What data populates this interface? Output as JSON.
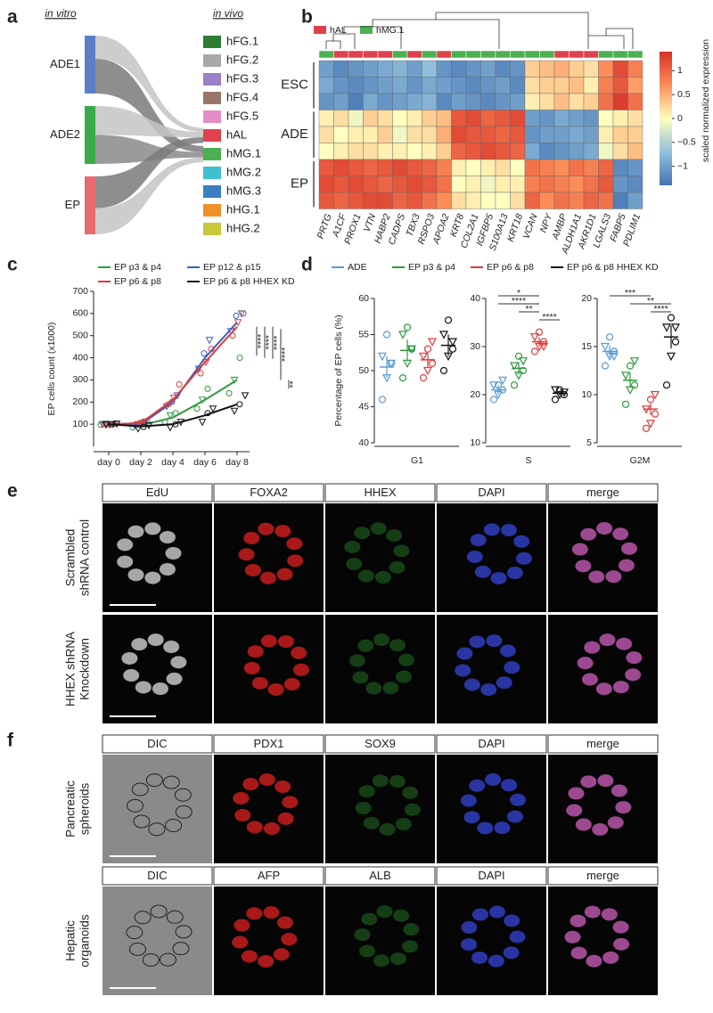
{
  "panel_letters": [
    "a",
    "b",
    "c",
    "d",
    "e",
    "f"
  ],
  "chart_data": [
    {
      "type": "sankey",
      "left_title": "in vitro",
      "right_title": "in vivo",
      "sources": [
        {
          "name": "ADE1",
          "color": "#5b7fc6"
        },
        {
          "name": "ADE2",
          "color": "#3aaa4a"
        },
        {
          "name": "EP",
          "color": "#e8696e"
        }
      ],
      "targets": [
        {
          "name": "hFG.1",
          "color": "#2e7d32"
        },
        {
          "name": "hFG.2",
          "color": "#a8a8a8"
        },
        {
          "name": "hFG.3",
          "color": "#9c7fc8"
        },
        {
          "name": "hFG.4",
          "color": "#9a766a"
        },
        {
          "name": "hFG.5",
          "color": "#e58cc8"
        },
        {
          "name": "hAL",
          "color": "#e0414c"
        },
        {
          "name": "hMG.1",
          "color": "#4caf50"
        },
        {
          "name": "hMG.2",
          "color": "#3fbfcf"
        },
        {
          "name": "hMG.3",
          "color": "#3a7fc0"
        },
        {
          "name": "hHG.1",
          "color": "#f0902a"
        },
        {
          "name": "hHG.2",
          "color": "#c8c83a"
        }
      ],
      "links": [
        {
          "source": 0,
          "target": 5,
          "value": 0.4,
          "color": "#c4c4c4"
        },
        {
          "source": 0,
          "target": 6,
          "value": 0.6,
          "color": "#7a7a7a"
        },
        {
          "source": 1,
          "target": 5,
          "value": 0.5,
          "color": "#c4c4c4"
        },
        {
          "source": 1,
          "target": 6,
          "value": 0.5,
          "color": "#8a8a8a"
        },
        {
          "source": 2,
          "target": 5,
          "value": 0.55,
          "color": "#7a7a7a"
        },
        {
          "source": 2,
          "target": 6,
          "value": 0.45,
          "color": "#c4c4c4"
        }
      ]
    },
    {
      "type": "heatmap",
      "legend": [
        {
          "name": "hAL",
          "color": "#e0414c"
        },
        {
          "name": "hMG.1",
          "color": "#4caf50"
        }
      ],
      "columns": [
        "PRTG",
        "A1CF",
        "PROX1",
        "VTN",
        "HABP2",
        "CADPS",
        "TBX3",
        "RSPO3",
        "APOA2",
        "KRT8",
        "COL2A1",
        "IGFBP5",
        "S100A13",
        "KRT18",
        "VCAN",
        "NPY",
        "AMBP",
        "ALDH1A1",
        "AKR1D1",
        "LGALS3",
        "FABP5",
        "PDLIM1"
      ],
      "column_groups": [
        1,
        0,
        0,
        0,
        0,
        1,
        0,
        1,
        0,
        1,
        1,
        1,
        1,
        1,
        1,
        1,
        0,
        0,
        0,
        1,
        1,
        1
      ],
      "row_groups": [
        {
          "label": "ESC",
          "values": [
            [
              -1.0,
              -1.2,
              -1.1,
              -1.0,
              -0.9,
              -0.8,
              -1.0,
              -0.7,
              -1.1,
              -1.2,
              -1.1,
              -1.0,
              -1.2,
              -1.1,
              0.3,
              0.4,
              0.5,
              0.3,
              0.2,
              0.7,
              1.2,
              0.8
            ],
            [
              -0.9,
              -1.1,
              -1.2,
              -1.1,
              -1.0,
              -0.9,
              -1.1,
              -0.9,
              -1.0,
              -1.1,
              -1.2,
              -1.1,
              -1.0,
              -1.2,
              0.2,
              0.3,
              0.3,
              0.4,
              0.1,
              0.8,
              1.1,
              0.6
            ],
            [
              -1.1,
              -1.0,
              -1.3,
              -0.9,
              -1.1,
              -1.0,
              -0.9,
              -0.8,
              -1.2,
              -1.0,
              -1.1,
              -1.2,
              -1.1,
              -1.0,
              0.1,
              0.2,
              0.4,
              0.2,
              0.3,
              0.9,
              1.3,
              0.9
            ]
          ]
        },
        {
          "label": "ADE",
          "values": [
            [
              0.1,
              0.2,
              -0.1,
              0.3,
              0.2,
              0.0,
              0.1,
              0.3,
              0.4,
              1.1,
              1.2,
              1.0,
              1.1,
              1.2,
              -1.0,
              -1.1,
              -0.9,
              -1.0,
              -1.1,
              0.0,
              0.1,
              0.2
            ],
            [
              0.2,
              0.0,
              0.1,
              0.1,
              0.3,
              -0.1,
              0.2,
              0.2,
              0.5,
              1.2,
              1.1,
              1.1,
              1.0,
              1.1,
              -1.1,
              -1.0,
              -1.0,
              -0.9,
              -1.0,
              0.1,
              0.3,
              0.3
            ],
            [
              0.0,
              0.1,
              0.2,
              0.2,
              0.1,
              0.1,
              0.0,
              0.1,
              0.3,
              1.0,
              1.1,
              1.2,
              1.1,
              1.0,
              -0.9,
              -1.2,
              -1.1,
              -1.0,
              -0.9,
              -0.1,
              0.2,
              0.4
            ]
          ]
        },
        {
          "label": "EP",
          "values": [
            [
              1.1,
              1.2,
              1.1,
              1.0,
              1.1,
              1.2,
              1.1,
              1.0,
              0.8,
              0.1,
              0.0,
              0.1,
              0.2,
              0.0,
              0.9,
              0.8,
              0.7,
              0.9,
              0.8,
              1.0,
              -1.2,
              -1.1
            ],
            [
              1.2,
              1.1,
              1.2,
              1.1,
              1.0,
              1.1,
              1.2,
              1.1,
              0.9,
              0.0,
              0.1,
              -0.1,
              0.1,
              0.1,
              0.8,
              0.9,
              0.8,
              0.7,
              0.9,
              1.1,
              -1.1,
              -1.2
            ],
            [
              1.1,
              1.0,
              1.1,
              1.2,
              1.2,
              1.0,
              1.1,
              0.9,
              0.7,
              0.2,
              0.1,
              0.0,
              0.0,
              0.2,
              1.0,
              0.7,
              0.9,
              0.8,
              1.0,
              0.9,
              -1.3,
              -1.0
            ]
          ]
        }
      ],
      "clim": [
        -1.4,
        1.4
      ],
      "colors": [
        "#4575b4",
        "#91bfdb",
        "#ffffbf",
        "#fc8d59",
        "#d73027"
      ],
      "colorbar_ticks": [
        1,
        0.5,
        0,
        {
          "value": -0.5,
          "label": "−0.5"
        },
        {
          "value": -1,
          "label": "−1"
        }
      ],
      "colorbar_label": "scaled normalized expression"
    },
    {
      "type": "line",
      "ylabel": "EP cells count (x1000)",
      "categories": [
        "day 0",
        "day 2",
        "day 4",
        "day 6",
        "day 8"
      ],
      "ylim": [
        0,
        700
      ],
      "yticks": [
        100,
        200,
        300,
        400,
        500,
        600,
        700
      ],
      "series": [
        {
          "name": "EP p3 & p4",
          "color": "#2e9a3e",
          "values": [
            100,
            95,
            130,
            210,
            300
          ],
          "points": [
            [
              98,
              102,
              100
            ],
            [
              85,
              100,
              110
            ],
            [
              110,
              140,
              150
            ],
            [
              170,
              210,
              260
            ],
            [
              240,
              300,
              400
            ]
          ]
        },
        {
          "name": "EP p12 & p15",
          "color": "#3a5fb8",
          "values": [
            100,
            100,
            200,
            400,
            560
          ],
          "points": [
            [
              100,
              101,
              99
            ],
            [
              95,
              100,
              110
            ],
            [
              180,
              200,
              230
            ],
            [
              350,
              420,
              480
            ],
            [
              520,
              590,
              600
            ]
          ]
        },
        {
          "name": "EP p6 & p8",
          "color": "#e03a3a",
          "values": [
            100,
            105,
            210,
            380,
            540
          ],
          "points": [
            [
              100,
              97,
              103
            ],
            [
              100,
              105,
              115
            ],
            [
              190,
              220,
              280
            ],
            [
              330,
              380,
              440
            ],
            [
              500,
              560,
              600
            ]
          ]
        },
        {
          "name": "EP p6 & p8 HHEX KD",
          "color": "#111111",
          "values": [
            100,
            90,
            100,
            140,
            190
          ],
          "points": [
            [
              98,
              100,
              102
            ],
            [
              80,
              88,
              95
            ],
            [
              85,
              100,
              110
            ],
            [
              110,
              150,
              170
            ],
            [
              160,
              190,
              230
            ]
          ]
        }
      ],
      "annotations": [
        "****",
        "****",
        "****",
        "****",
        "**"
      ]
    },
    {
      "type": "dot",
      "ylabel": "Percentage of EP cells (%)",
      "series": [
        {
          "name": "ADE",
          "color": "#5a9bd5"
        },
        {
          "name": "EP p3 & p4",
          "color": "#2e9a3e"
        },
        {
          "name": "EP p6 & p8",
          "color": "#e03a3a"
        },
        {
          "name": "EP p6 & p8 HHEX KD",
          "color": "#111111"
        }
      ],
      "subplots": [
        {
          "xlabel": "G1",
          "ylim": [
            40,
            60
          ],
          "yticks": [
            40,
            45,
            50,
            55,
            60
          ],
          "groups": [
            {
              "mean": 50.5,
              "sem": 1.5,
              "points": [
                46,
                49,
                51,
                52,
                55,
                51
              ]
            },
            {
              "mean": 52.8,
              "sem": 1.5,
              "points": [
                49,
                51,
                53,
                55,
                56,
                53
              ]
            },
            {
              "mean": 51.5,
              "sem": 1,
              "points": [
                49,
                50,
                51,
                52,
                53,
                54
              ]
            },
            {
              "mean": 53.5,
              "sem": 1.5,
              "points": [
                50,
                52,
                53,
                55,
                57,
                54
              ]
            }
          ],
          "significance": []
        },
        {
          "xlabel": "S",
          "ylim": [
            10,
            40
          ],
          "yticks": [
            10,
            20,
            30,
            40
          ],
          "groups": [
            {
              "mean": 21,
              "sem": 1,
              "points": [
                19,
                20,
                21,
                22,
                22,
                23
              ]
            },
            {
              "mean": 25.5,
              "sem": 1.3,
              "points": [
                22,
                24,
                25,
                26,
                28,
                27
              ]
            },
            {
              "mean": 31,
              "sem": 1,
              "points": [
                29,
                30,
                31,
                32,
                33,
                30
              ]
            },
            {
              "mean": 20.3,
              "sem": 0.5,
              "points": [
                19,
                20,
                20,
                21,
                21,
                20.5
              ]
            }
          ],
          "significance": [
            "*",
            "****",
            "**",
            "****"
          ]
        },
        {
          "xlabel": "G2M",
          "ylim": [
            5,
            20
          ],
          "yticks": [
            5,
            10,
            15,
            20
          ],
          "groups": [
            {
              "mean": 14.5,
              "sem": 0.6,
              "points": [
                13,
                14,
                14.5,
                15,
                16,
                14
              ]
            },
            {
              "mean": 11.5,
              "sem": 0.8,
              "points": [
                9,
                10.5,
                11,
                12,
                13,
                13.5
              ]
            },
            {
              "mean": 8.5,
              "sem": 0.6,
              "points": [
                6.5,
                7,
                8,
                8.5,
                9.5,
                10
              ]
            },
            {
              "mean": 16,
              "sem": 1.2,
              "points": [
                11,
                14,
                15.5,
                17,
                18,
                17
              ]
            }
          ],
          "significance": [
            "***",
            "**",
            "****"
          ]
        }
      ]
    }
  ],
  "panel_e": {
    "channels": [
      "EdU",
      "FOXA2",
      "HHEX",
      "DAPI",
      "merge"
    ],
    "rows": [
      {
        "label": [
          "Scrambled",
          "shRNA control"
        ]
      },
      {
        "label": [
          "HHEX shRNA",
          "Knockdown"
        ]
      }
    ]
  },
  "panel_f": {
    "blocks": [
      {
        "channels": [
          "DIC",
          "PDX1",
          "SOX9",
          "DAPI",
          "merge"
        ],
        "label": [
          "Pancreatic",
          "spheroids"
        ]
      },
      {
        "channels": [
          "DIC",
          "AFP",
          "ALB",
          "DAPI",
          "merge"
        ],
        "label": [
          "Hepatic",
          "organoids"
        ]
      }
    ]
  }
}
